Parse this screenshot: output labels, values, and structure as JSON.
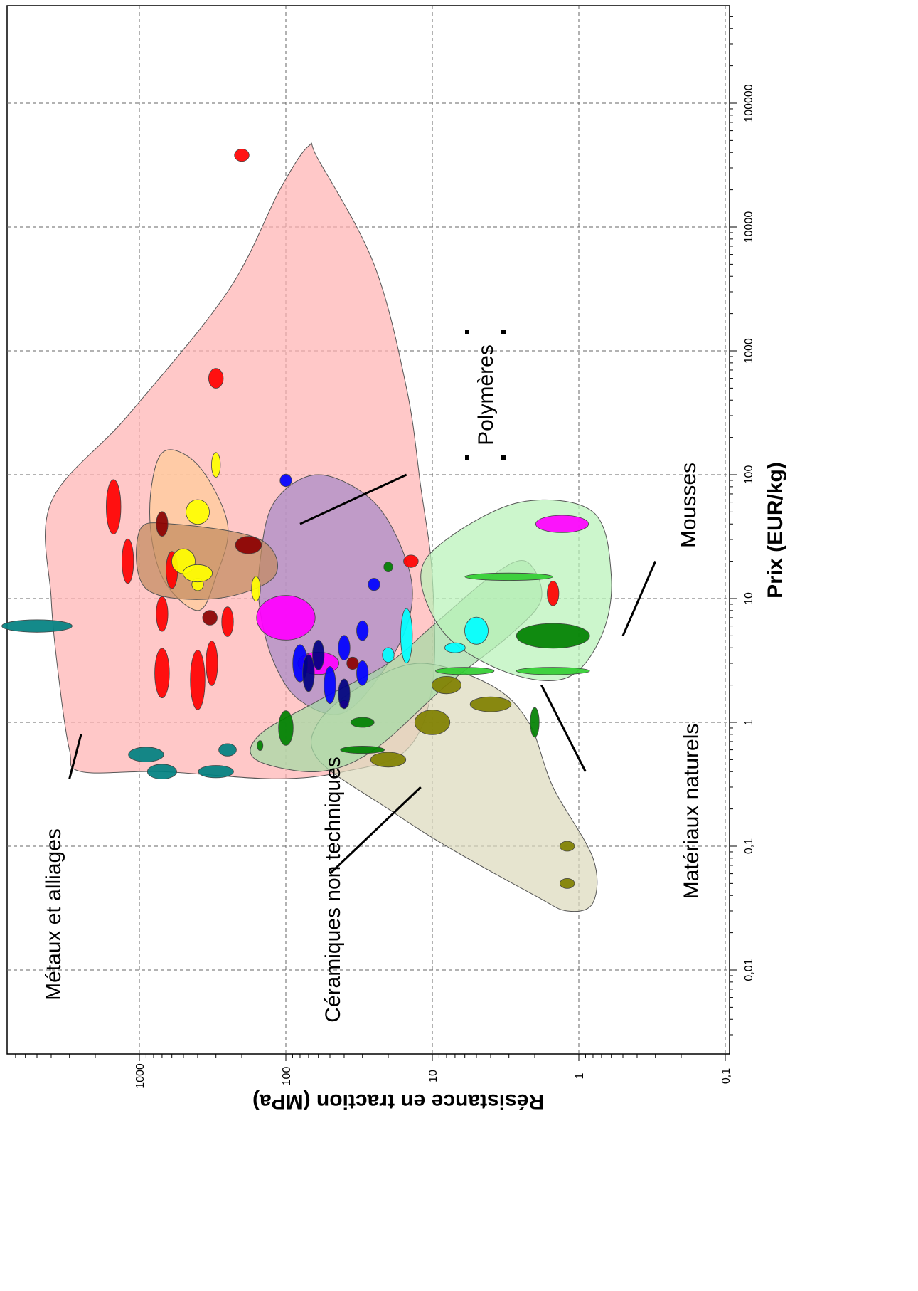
{
  "chart_data": {
    "type": "scatter",
    "title": "",
    "xlabel": "Prix (EUR/kg)",
    "ylabel": "Résistance en traction (MPa)",
    "xscale": "log",
    "yscale": "log",
    "xlim": [
      0.003,
      500000
    ],
    "ylim": [
      0.1,
      7000
    ],
    "grid": true,
    "rotation_deg": 90,
    "x_ticks": [
      "0,01",
      "0,1",
      "1",
      "10",
      "100",
      "1000",
      "10000",
      "100000"
    ],
    "x_tick_values": [
      0.01,
      0.1,
      1,
      10,
      100,
      1000,
      10000,
      100000
    ],
    "y_ticks": [
      "0,1",
      "1",
      "10",
      "100",
      "1000"
    ],
    "y_tick_values": [
      0.1,
      1,
      10,
      100,
      1000
    ],
    "families": [
      {
        "name": "Métaux et alliages",
        "color": "#ffb3b3",
        "envelope": [
          [
            0.4,
            2500
          ],
          [
            0.4,
            700
          ],
          [
            0.35,
            120
          ],
          [
            0.4,
            40
          ],
          [
            0.6,
            15
          ],
          [
            2,
            10
          ],
          [
            15,
            10
          ],
          [
            80,
            12
          ],
          [
            500,
            15
          ],
          [
            5000,
            25
          ],
          [
            35000,
            60
          ],
          [
            45000,
            70
          ],
          [
            20000,
            110
          ],
          [
            3000,
            250
          ],
          [
            300,
            1200
          ],
          [
            60,
            4000
          ],
          [
            10,
            4000
          ],
          [
            2,
            3500
          ],
          [
            0.6,
            3000
          ]
        ]
      },
      {
        "name": "Polymères",
        "color": "#a889c8",
        "envelope": [
          [
            1.2,
            40
          ],
          [
            3,
            20
          ],
          [
            8,
            14
          ],
          [
            20,
            15
          ],
          [
            60,
            25
          ],
          [
            100,
            60
          ],
          [
            60,
            120
          ],
          [
            20,
            150
          ],
          [
            8,
            150
          ],
          [
            3,
            120
          ],
          [
            1.5,
            80
          ]
        ]
      },
      {
        "name": "Céramiques non techniques",
        "color": "#dcd9bd",
        "envelope": [
          [
            0.5,
            60
          ],
          [
            0.2,
            20
          ],
          [
            0.1,
            8
          ],
          [
            0.04,
            2
          ],
          [
            0.03,
            1.2
          ],
          [
            0.035,
            0.8
          ],
          [
            0.08,
            0.8
          ],
          [
            0.3,
            1.5
          ],
          [
            1,
            2.2
          ],
          [
            2,
            4
          ],
          [
            3,
            12
          ],
          [
            2,
            30
          ],
          [
            1,
            60
          ]
        ]
      },
      {
        "name": "Matériaux naturels",
        "color": "#a3dba3",
        "envelope": [
          [
            0.5,
            160
          ],
          [
            0.4,
            60
          ],
          [
            0.6,
            25
          ],
          [
            2,
            8
          ],
          [
            5,
            3
          ],
          [
            10,
            1.8
          ],
          [
            20,
            2.3
          ],
          [
            15,
            4
          ],
          [
            6,
            10
          ],
          [
            3,
            20
          ],
          [
            1.5,
            60
          ],
          [
            0.8,
            150
          ]
        ]
      },
      {
        "name": "Mousses",
        "color": "#b9f2b9",
        "envelope": [
          [
            2.3,
            1.2
          ],
          [
            5,
            0.7
          ],
          [
            15,
            0.6
          ],
          [
            50,
            0.8
          ],
          [
            60,
            2.5
          ],
          [
            30,
            8
          ],
          [
            15,
            12
          ],
          [
            5,
            8
          ],
          [
            2.5,
            3
          ]
        ]
      },
      {
        "name": "",
        "color": "#ffcc99",
        "envelope": [
          [
            15,
            300
          ],
          [
            8,
            400
          ],
          [
            15,
            700
          ],
          [
            50,
            850
          ],
          [
            150,
            700
          ],
          [
            120,
            400
          ],
          [
            40,
            250
          ]
        ]
      },
      {
        "name": "",
        "color": "#c28a5e",
        "envelope": [
          [
            12,
            900
          ],
          [
            35,
            1000
          ],
          [
            40,
            600
          ],
          [
            30,
            150
          ],
          [
            15,
            120
          ],
          [
            10,
            300
          ]
        ]
      }
    ],
    "materials": [
      {
        "x": 55,
        "y": 1500,
        "rx": 0.22,
        "ry": 0.05,
        "color": "#ff0000"
      },
      {
        "x": 20,
        "y": 1200,
        "rx": 0.18,
        "ry": 0.04,
        "color": "#ff0000"
      },
      {
        "x": 17,
        "y": 600,
        "rx": 0.15,
        "ry": 0.04,
        "color": "#ff0000"
      },
      {
        "x": 7.5,
        "y": 700,
        "rx": 0.14,
        "ry": 0.04,
        "color": "#ff0000"
      },
      {
        "x": 2.5,
        "y": 700,
        "rx": 0.2,
        "ry": 0.05,
        "color": "#ff0000"
      },
      {
        "x": 2.2,
        "y": 400,
        "rx": 0.24,
        "ry": 0.05,
        "color": "#ff0000"
      },
      {
        "x": 3.0,
        "y": 320,
        "rx": 0.18,
        "ry": 0.04,
        "color": "#ff0000"
      },
      {
        "x": 6.5,
        "y": 250,
        "rx": 0.12,
        "ry": 0.04,
        "color": "#ff0000"
      },
      {
        "x": 600,
        "y": 300,
        "rx": 0.08,
        "ry": 0.05,
        "color": "#ff0000"
      },
      {
        "x": 38000,
        "y": 200,
        "rx": 0.05,
        "ry": 0.05,
        "color": "#ff0000"
      },
      {
        "x": 11,
        "y": 1.5,
        "rx": 0.1,
        "ry": 0.04,
        "color": "#ff0000"
      },
      {
        "x": 20,
        "y": 14,
        "rx": 0.05,
        "ry": 0.05,
        "color": "#ff0000"
      },
      {
        "x": 40,
        "y": 700,
        "rx": 0.1,
        "ry": 0.04,
        "color": "#8b0000"
      },
      {
        "x": 27,
        "y": 180,
        "rx": 0.07,
        "ry": 0.09,
        "color": "#8b0000"
      },
      {
        "x": 7,
        "y": 330,
        "rx": 0.06,
        "ry": 0.05,
        "color": "#8b0000"
      },
      {
        "x": 6,
        "y": 5000,
        "rx": 0.05,
        "ry": 0.24,
        "color": "#008080"
      },
      {
        "x": 0.55,
        "y": 900,
        "rx": 0.06,
        "ry": 0.12,
        "color": "#008080"
      },
      {
        "x": 0.4,
        "y": 700,
        "rx": 0.06,
        "ry": 0.1,
        "color": "#008080"
      },
      {
        "x": 0.4,
        "y": 300,
        "rx": 0.05,
        "ry": 0.12,
        "color": "#008080"
      },
      {
        "x": 0.6,
        "y": 250,
        "rx": 0.05,
        "ry": 0.06,
        "color": "#008080"
      },
      {
        "x": 13,
        "y": 400,
        "rx": 0.05,
        "ry": 0.04,
        "color": "#ffff00"
      },
      {
        "x": 20,
        "y": 500,
        "rx": 0.1,
        "ry": 0.08,
        "color": "#ffff00"
      },
      {
        "x": 16,
        "y": 400,
        "rx": 0.07,
        "ry": 0.1,
        "color": "#ffff00"
      },
      {
        "x": 50,
        "y": 400,
        "rx": 0.1,
        "ry": 0.08,
        "color": "#ffff00"
      },
      {
        "x": 120,
        "y": 300,
        "rx": 0.1,
        "ry": 0.03,
        "color": "#ffff00"
      },
      {
        "x": 12,
        "y": 160,
        "rx": 0.1,
        "ry": 0.03,
        "color": "#ffff00"
      },
      {
        "x": 7,
        "y": 100,
        "rx": 0.18,
        "ry": 0.2,
        "color": "#ff00ff"
      },
      {
        "x": 3,
        "y": 60,
        "rx": 0.09,
        "ry": 0.14,
        "color": "#ff00ff"
      },
      {
        "x": 40,
        "y": 1.3,
        "rx": 0.07,
        "ry": 0.18,
        "color": "#ff00ff"
      },
      {
        "x": 1.4,
        "y": 40,
        "rx": 0.03,
        "ry": 0.03,
        "color": "#ff00ff"
      },
      {
        "x": 3,
        "y": 80,
        "rx": 0.15,
        "ry": 0.05,
        "color": "#0000ff"
      },
      {
        "x": 2,
        "y": 50,
        "rx": 0.15,
        "ry": 0.04,
        "color": "#0000ff"
      },
      {
        "x": 4,
        "y": 40,
        "rx": 0.1,
        "ry": 0.04,
        "color": "#0000ff"
      },
      {
        "x": 2.5,
        "y": 30,
        "rx": 0.1,
        "ry": 0.04,
        "color": "#0000ff"
      },
      {
        "x": 5.5,
        "y": 30,
        "rx": 0.08,
        "ry": 0.04,
        "color": "#0000ff"
      },
      {
        "x": 90,
        "y": 100,
        "rx": 0.05,
        "ry": 0.04,
        "color": "#0000ff"
      },
      {
        "x": 13,
        "y": 25,
        "rx": 0.05,
        "ry": 0.04,
        "color": "#0000ff"
      },
      {
        "x": 3.5,
        "y": 60,
        "rx": 0.12,
        "ry": 0.04,
        "color": "#000080"
      },
      {
        "x": 2.5,
        "y": 70,
        "rx": 0.15,
        "ry": 0.04,
        "color": "#000080"
      },
      {
        "x": 1.7,
        "y": 40,
        "rx": 0.12,
        "ry": 0.04,
        "color": "#000080"
      },
      {
        "x": 3,
        "y": 35,
        "rx": 0.05,
        "ry": 0.04,
        "color": "#8b0000"
      },
      {
        "x": 5,
        "y": 15,
        "rx": 0.22,
        "ry": 0.04,
        "color": "#00ffff"
      },
      {
        "x": 5.5,
        "y": 5,
        "rx": 0.11,
        "ry": 0.08,
        "color": "#00ffff"
      },
      {
        "x": 4,
        "y": 7,
        "rx": 0.04,
        "ry": 0.07,
        "color": "#00ffff"
      },
      {
        "x": 3.5,
        "y": 20,
        "rx": 0.06,
        "ry": 0.04,
        "color": "#00ffff"
      },
      {
        "x": 5,
        "y": 1.5,
        "rx": 0.1,
        "ry": 0.25,
        "color": "#008000"
      },
      {
        "x": 2.6,
        "y": 6,
        "rx": 0.03,
        "ry": 0.2,
        "color": "#32cd32"
      },
      {
        "x": 2.6,
        "y": 1.5,
        "rx": 0.03,
        "ry": 0.25,
        "color": "#32cd32"
      },
      {
        "x": 15,
        "y": 3,
        "rx": 0.03,
        "ry": 0.3,
        "color": "#32cd32"
      },
      {
        "x": 0.9,
        "y": 100,
        "rx": 0.14,
        "ry": 0.05,
        "color": "#008000"
      },
      {
        "x": 1,
        "y": 30,
        "rx": 0.04,
        "ry": 0.08,
        "color": "#008000"
      },
      {
        "x": 1,
        "y": 2,
        "rx": 0.12,
        "ry": 0.03,
        "color": "#008000"
      },
      {
        "x": 0.6,
        "y": 30,
        "rx": 0.03,
        "ry": 0.15,
        "color": "#008000"
      },
      {
        "x": 0.65,
        "y": 150,
        "rx": 0.04,
        "ry": 0.02,
        "color": "#008000"
      },
      {
        "x": 18,
        "y": 20,
        "rx": 0.04,
        "ry": 0.03,
        "color": "#008000"
      },
      {
        "x": 2,
        "y": 8,
        "rx": 0.07,
        "ry": 0.1,
        "color": "#808000"
      },
      {
        "x": 1,
        "y": 10,
        "rx": 0.1,
        "ry": 0.12,
        "color": "#808000"
      },
      {
        "x": 0.5,
        "y": 20,
        "rx": 0.06,
        "ry": 0.12,
        "color": "#808000"
      },
      {
        "x": 1.4,
        "y": 4,
        "rx": 0.06,
        "ry": 0.14,
        "color": "#808000"
      },
      {
        "x": 0.1,
        "y": 1.2,
        "rx": 0.04,
        "ry": 0.05,
        "color": "#808000"
      },
      {
        "x": 0.05,
        "y": 1.2,
        "rx": 0.04,
        "ry": 0.05,
        "color": "#808000"
      }
    ],
    "annotations": [
      {
        "text": "Métaux et alliages",
        "from": [
          0.35,
          3000
        ],
        "to": [
          0.8,
          2500
        ]
      },
      {
        "text": "Polymères",
        "from": [
          40,
          80
        ],
        "to": [
          100,
          15
        ]
      },
      {
        "text": "Céramiques non techniques",
        "from": [
          0.06,
          50
        ],
        "to": [
          0.3,
          12
        ]
      },
      {
        "text": "Matériaux naturels",
        "from": [
          0.4,
          0.9
        ],
        "to": [
          2,
          1.8
        ]
      },
      {
        "text": "Mousses",
        "from": [
          5,
          0.5
        ],
        "to": [
          20,
          0.3
        ]
      }
    ]
  }
}
